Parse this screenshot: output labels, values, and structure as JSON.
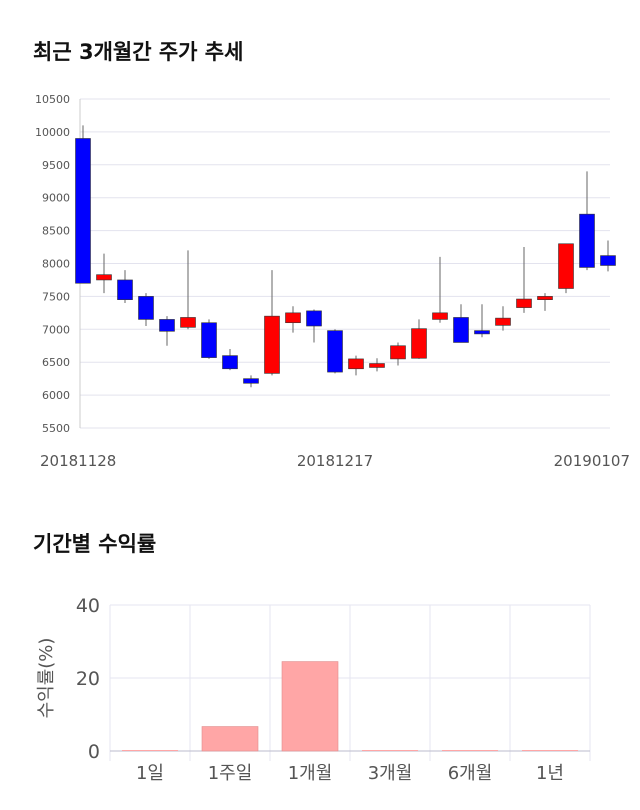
{
  "section1": {
    "title": "최근 3개월간 주가 추세"
  },
  "section2": {
    "title": "기간별 수익률"
  },
  "price_chart": {
    "type": "candlestick",
    "ylim": [
      5500,
      10500
    ],
    "yticks": [
      5500,
      6000,
      6500,
      7000,
      7500,
      8000,
      8500,
      9000,
      9500,
      10000,
      10500
    ],
    "xlabels": [
      {
        "index": 0,
        "text": "20181128"
      },
      {
        "index": 12,
        "text": "20181217"
      },
      {
        "index": 25,
        "text": "20190107"
      }
    ],
    "up_color": "#ff0000",
    "down_color": "#0000ff",
    "candles": [
      {
        "o": 9900,
        "h": 10100,
        "l": 7700,
        "c": 7700
      },
      {
        "o": 7750,
        "h": 8150,
        "l": 7550,
        "c": 7830
      },
      {
        "o": 7750,
        "h": 7900,
        "l": 7400,
        "c": 7450
      },
      {
        "o": 7500,
        "h": 7550,
        "l": 7050,
        "c": 7150
      },
      {
        "o": 7150,
        "h": 7200,
        "l": 6750,
        "c": 6970
      },
      {
        "o": 7030,
        "h": 8200,
        "l": 7000,
        "c": 7180
      },
      {
        "o": 7100,
        "h": 7150,
        "l": 6550,
        "c": 6570
      },
      {
        "o": 6600,
        "h": 6700,
        "l": 6380,
        "c": 6400
      },
      {
        "o": 6250,
        "h": 6300,
        "l": 6120,
        "c": 6180
      },
      {
        "o": 6330,
        "h": 7900,
        "l": 6300,
        "c": 7200
      },
      {
        "o": 7100,
        "h": 7350,
        "l": 6950,
        "c": 7250
      },
      {
        "o": 7280,
        "h": 7300,
        "l": 6800,
        "c": 7050
      },
      {
        "o": 6980,
        "h": 7000,
        "l": 6330,
        "c": 6350
      },
      {
        "o": 6400,
        "h": 6600,
        "l": 6300,
        "c": 6550
      },
      {
        "o": 6420,
        "h": 6560,
        "l": 6360,
        "c": 6480
      },
      {
        "o": 6550,
        "h": 6800,
        "l": 6450,
        "c": 6750
      },
      {
        "o": 6560,
        "h": 7150,
        "l": 6550,
        "c": 7010
      },
      {
        "o": 7150,
        "h": 8100,
        "l": 7100,
        "c": 7250
      },
      {
        "o": 7180,
        "h": 7380,
        "l": 6800,
        "c": 6800
      },
      {
        "o": 6980,
        "h": 7380,
        "l": 6880,
        "c": 6930
      },
      {
        "o": 7060,
        "h": 7350,
        "l": 6980,
        "c": 7170
      },
      {
        "o": 7330,
        "h": 8250,
        "l": 7250,
        "c": 7460
      },
      {
        "o": 7450,
        "h": 7550,
        "l": 7280,
        "c": 7500
      },
      {
        "o": 7620,
        "h": 8300,
        "l": 7550,
        "c": 8300
      },
      {
        "o": 8750,
        "h": 9400,
        "l": 7900,
        "c": 7940
      },
      {
        "o": 8120,
        "h": 8350,
        "l": 7880,
        "c": 7970
      }
    ]
  },
  "return_chart": {
    "type": "bar",
    "categories": [
      "1일",
      "1주일",
      "1개월",
      "3개월",
      "6개월",
      "1년"
    ],
    "values": [
      0,
      6.7,
      24.5,
      0,
      0,
      0
    ],
    "ylabel": "수익률(%)",
    "ylim": [
      0,
      40
    ],
    "yticks": [
      0,
      20,
      40
    ],
    "bar_color": "#ffa6a6"
  }
}
